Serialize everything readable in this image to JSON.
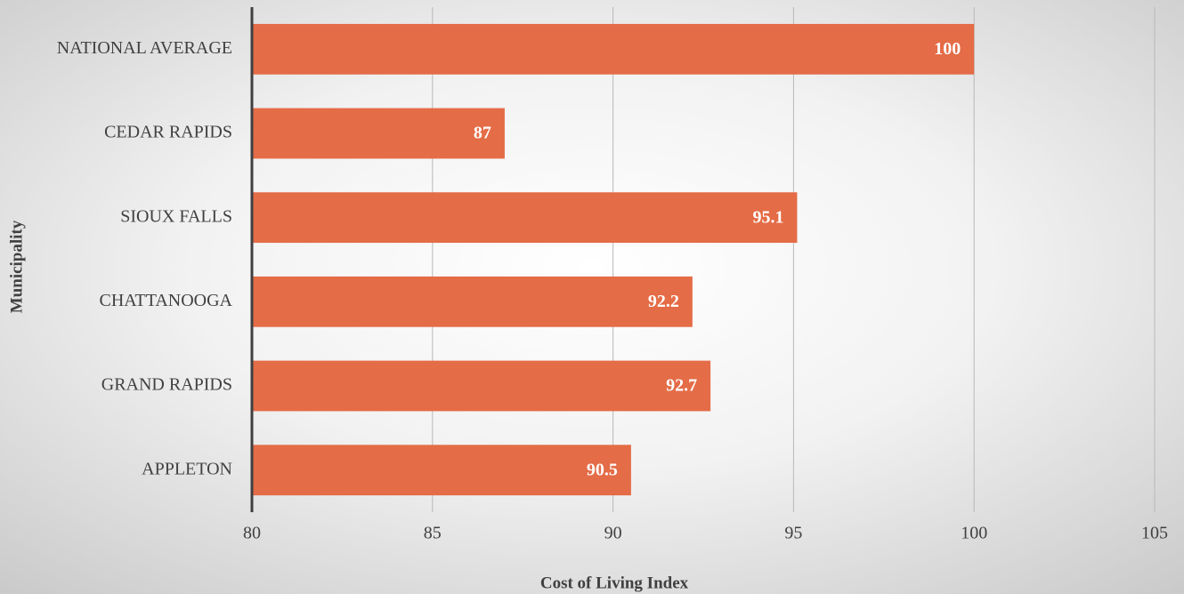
{
  "chart_data": {
    "type": "barh",
    "categories": [
      "NATIONAL AVERAGE",
      "CEDAR RAPIDS",
      "SIOUX FALLS",
      "CHATTANOOGA",
      "GRAND RAPIDS",
      "APPLETON"
    ],
    "values": [
      100,
      87,
      95.1,
      92.2,
      92.7,
      90.5
    ],
    "color": "#e46c47",
    "xlim": [
      80,
      105
    ],
    "xticks": [
      80,
      85,
      90,
      95,
      100,
      105
    ],
    "xlabel": "Cost of Living Index",
    "ylabel": "Municipality",
    "grid": true
  }
}
